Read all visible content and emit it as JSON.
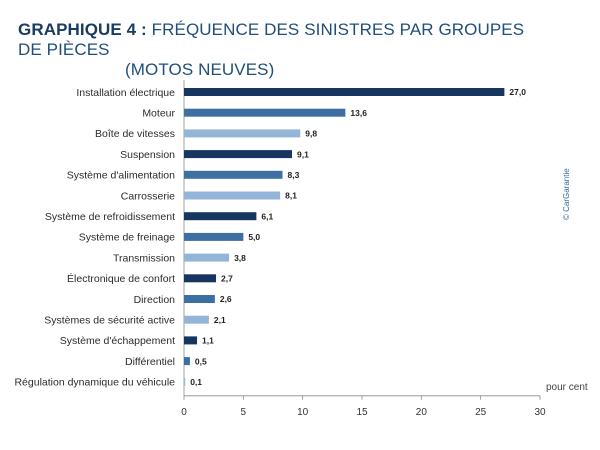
{
  "title": {
    "prefix": "GRAPHIQUE 4 :",
    "main": "FRÉQUENCE DES SINISTRES PAR GROUPES DE PIÈCES",
    "sub": "(MOTOS NEUVES)"
  },
  "source": "© CarGarantie",
  "colors": {
    "dark": "#17365f",
    "medium": "#3e6fa3",
    "light": "#93b6d8",
    "title": "#1f4e7a"
  },
  "chart_data": {
    "type": "bar",
    "orientation": "horizontal",
    "categories": [
      "Installation électrique",
      "Moteur",
      "Boîte de vitesses",
      "Suspension",
      "Système d'alimentation",
      "Carrosserie",
      "Système de refroidissement",
      "Système de freinage",
      "Transmission",
      "Électronique de confort",
      "Direction",
      "Systèmes de sécurité active",
      "Système d'échappement",
      "Différentiel",
      "Régulation dynamique du véhicule"
    ],
    "values": [
      27.0,
      13.6,
      9.8,
      9.1,
      8.3,
      8.1,
      6.1,
      5.0,
      3.8,
      2.7,
      2.6,
      2.1,
      1.1,
      0.5,
      0.1
    ],
    "value_labels": [
      "27,0",
      "13,6",
      "9,8",
      "9,1",
      "8,3",
      "8,1",
      "6,1",
      "5,0",
      "3,8",
      "2,7",
      "2,6",
      "2,1",
      "1,1",
      "0,5",
      "0,1"
    ],
    "bar_shades": [
      "dark",
      "medium",
      "light",
      "dark",
      "medium",
      "light",
      "dark",
      "medium",
      "light",
      "dark",
      "medium",
      "light",
      "dark",
      "medium",
      "light"
    ],
    "xlim": [
      0,
      30
    ],
    "xticks": [
      0,
      5,
      10,
      15,
      20,
      25,
      30
    ],
    "xlabel": "pour cent",
    "grid": false,
    "legend": "none"
  }
}
